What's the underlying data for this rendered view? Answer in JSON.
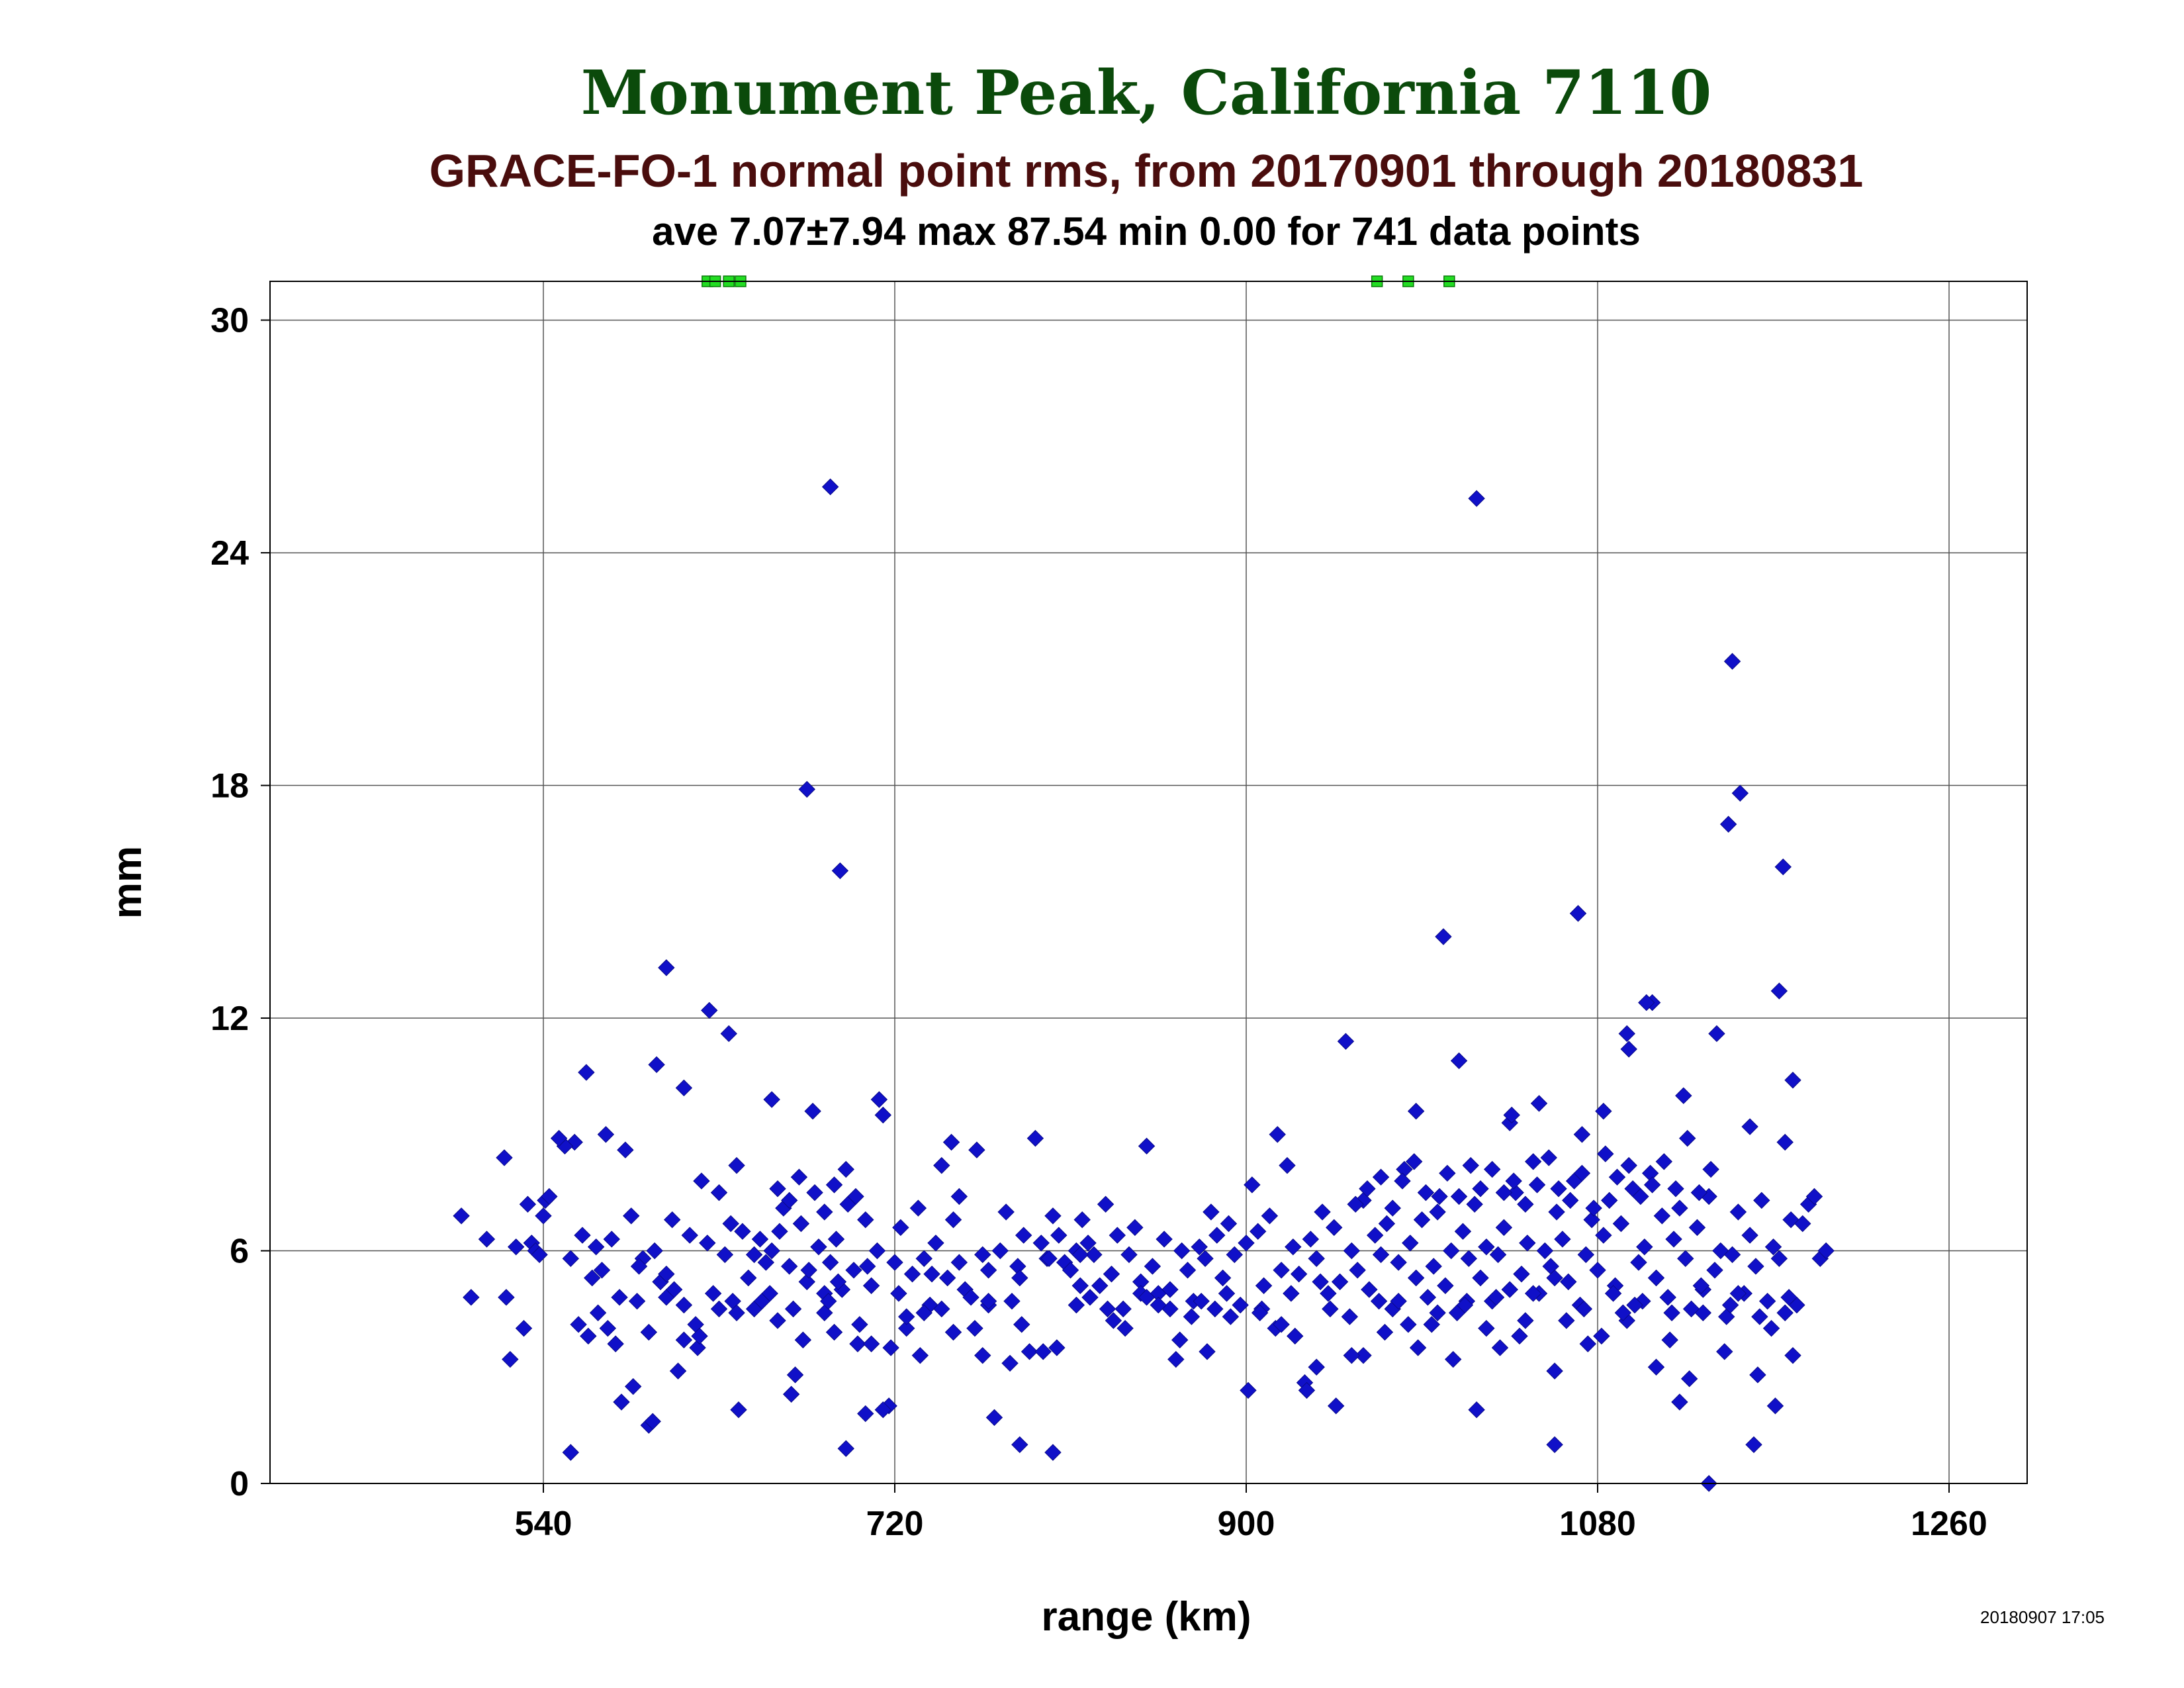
{
  "chart_data": {
    "type": "scatter",
    "title": "Monument Peak, California 7110",
    "subtitle": "GRACE-FO-1 normal point rms, from 20170901 through 20180831",
    "stats": "ave 7.07±7.94 max 87.54 min 0.00 for 741 data points",
    "xlabel": "range (km)",
    "ylabel": "mm",
    "timestamp": "20180907 17:05",
    "xlim": [
      400,
      1300
    ],
    "ylim": [
      0,
      31
    ],
    "xticks": [
      540,
      720,
      900,
      1080,
      1260
    ],
    "yticks": [
      0,
      6,
      12,
      18,
      24,
      30
    ],
    "xtick_labels": [
      "540",
      "720",
      "900",
      "1080",
      "1260"
    ],
    "ytick_labels": [
      "0",
      "6",
      "12",
      "18",
      "24",
      "30"
    ],
    "grid": true,
    "colors": {
      "points": "#1010c8",
      "offscale_markers": "#22dd22",
      "title": "#0b4a0b",
      "subtitle": "#4a0d0d"
    },
    "offscale_x": [
      624,
      628,
      635,
      641,
      967,
      983,
      1004
    ],
    "series": [
      {
        "x": [
          498,
          503,
          511,
          520,
          521,
          523,
          526,
          530,
          532,
          534,
          536,
          538,
          540,
          541,
          543,
          554,
          556,
          560,
          562,
          565,
          567,
          568,
          570,
          572,
          575,
          579,
          582,
          585,
          588,
          591,
          594,
          597,
          600,
          603,
          606,
          609,
          612,
          615,
          618,
          621,
          624,
          627,
          630,
          633,
          636,
          639,
          642,
          645,
          648,
          651,
          654,
          657,
          660,
          663,
          666,
          669,
          672,
          675,
          678,
          681,
          684,
          687,
          690,
          693,
          696,
          699,
          702,
          705,
          708,
          711,
          714,
          717,
          720,
          723,
          726,
          729,
          732,
          735,
          738,
          741,
          744,
          747,
          750,
          753,
          756,
          759,
          762,
          765,
          768,
          771,
          774,
          777,
          780,
          783,
          786,
          789,
          792,
          795,
          798,
          801,
          804,
          807,
          810,
          813,
          816,
          819,
          822,
          825,
          828,
          831,
          834,
          837,
          840,
          843,
          846,
          849,
          852,
          855,
          858,
          861,
          864,
          867,
          870,
          873,
          876,
          879,
          882,
          885,
          888,
          891,
          894,
          897,
          900,
          903,
          906,
          909,
          912,
          915,
          918,
          921,
          924,
          927,
          930,
          933,
          936,
          939,
          942,
          945,
          948,
          951,
          954,
          957,
          960,
          963,
          966,
          969,
          972,
          975,
          978,
          981,
          984,
          987,
          990,
          993,
          996,
          999,
          1002,
          1005,
          1008,
          1011,
          1014,
          1017,
          1020,
          1023,
          1026,
          1029,
          1032,
          1035,
          1038,
          1041,
          1044,
          1047,
          1050,
          1053,
          1056,
          1059,
          1062,
          1065,
          1068,
          1071,
          1074,
          1077,
          1080,
          1083,
          1086,
          1089,
          1092,
          1095,
          1098,
          1101,
          1104,
          1107,
          1110,
          1113,
          1116,
          1119,
          1122,
          1125,
          1128,
          1131,
          1134,
          1137,
          1140,
          1143,
          1146,
          1149,
          1152,
          1155,
          1158,
          1161,
          1164,
          1167,
          1170,
          1173,
          1176,
          1179,
          1182,
          1185,
          1188,
          1191,
          1194,
          1197,
          558,
          573,
          589,
          607,
          619,
          637,
          648,
          661,
          676,
          691,
          706,
          722,
          739,
          753,
          768,
          784,
          799,
          815,
          829,
          846,
          861,
          877,
          892,
          908,
          923,
          938,
          953,
          968,
          983,
          998,
          1013,
          1028,
          1043,
          1058,
          1073,
          1088,
          1103,
          1118,
          1133,
          1148,
          1163,
          1178,
          577,
          594,
          612,
          630,
          652,
          668,
          684,
          701,
          718,
          735,
          750,
          768,
          785,
          803,
          820,
          838,
          855,
          872,
          890,
          907,
          925,
          943,
          960,
          978,
          995,
          1012,
          1030,
          1047,
          1064,
          1082,
          1099,
          1117,
          1134,
          1152,
          1169,
          551,
          563,
          586,
          603,
          620,
          639,
          656,
          673,
          689,
          708,
          726,
          744,
          761,
          779,
          796,
          813,
          832,
          849,
          866,
          884,
          901,
          918,
          936,
          954,
          971,
          988,
          1006,
          1023,
          1040,
          1058,
          1075,
          1093,
          1110,
          1127,
          1145,
          1162,
          1180,
          660,
          666,
          671,
          679,
          684,
          689,
          695,
          700,
          956,
          962,
          969,
          975,
          980,
          986,
          992,
          998,
          1003,
          1009,
          1015,
          1020,
          1026,
          1032,
          1037,
          1043,
          1049,
          1055,
          1060,
          1066,
          1072,
          1078,
          1084,
          1090,
          1096,
          1102,
          1108,
          1114,
          1120,
          1126,
          1132,
          1138,
          548,
          554,
          580,
          596,
          598,
          603,
          612,
          625,
          640,
          667,
          686,
          695,
          705,
          714,
          733,
          749,
          765,
          784,
          801,
          815,
          880,
          916,
          931,
          946,
          987,
          1001,
          1018,
          1035,
          1058,
          1070,
          1083,
          1096,
          1108,
          1122,
          1137,
          1147,
          1160,
          1171,
          1180,
          635,
          657,
          675,
          687,
          692,
          712,
          1009,
          1018,
          1036,
          1050,
          1072,
          1095,
          1105,
          1124,
          1141,
          1149,
          1153,
          1158,
          1173,
          1175,
          1176
        ],
        "y": [
          6.9,
          4.8,
          6.3,
          8.4,
          4.8,
          3.2,
          6.1,
          4.0,
          7.2,
          6.2,
          6.0,
          5.9,
          6.9,
          7.3,
          7.4,
          5.8,
          8.8,
          6.4,
          10.6,
          5.3,
          6.1,
          4.4,
          5.5,
          9.0,
          6.3,
          4.8,
          8.6,
          6.9,
          4.7,
          5.8,
          1.5,
          6.0,
          5.2,
          4.8,
          6.8,
          2.9,
          10.2,
          6.4,
          4.1,
          7.8,
          6.2,
          4.9,
          7.5,
          5.9,
          6.7,
          8.2,
          6.5,
          5.3,
          4.5,
          6.3,
          5.7,
          6.0,
          4.2,
          7.1,
          5.6,
          2.8,
          6.7,
          5.2,
          9.6,
          6.1,
          4.4,
          5.7,
          6.3,
          5.0,
          7.2,
          5.5,
          4.1,
          6.8,
          5.1,
          6.0,
          9.5,
          2.0,
          5.7,
          6.6,
          4.0,
          5.4,
          7.1,
          5.8,
          4.6,
          6.2,
          8.2,
          5.3,
          6.8,
          7.4,
          5.0,
          4.8,
          8.6,
          5.9,
          5.5,
          1.7,
          6.0,
          7.0,
          4.7,
          5.6,
          6.4,
          3.4,
          8.9,
          6.2,
          5.8,
          6.9,
          6.4,
          5.7,
          5.5,
          6.0,
          6.8,
          6.2,
          5.9,
          5.1,
          7.2,
          5.4,
          6.4,
          4.5,
          5.9,
          6.6,
          5.2,
          8.7,
          5.6,
          4.9,
          6.3,
          5.0,
          3.2,
          6.0,
          5.5,
          4.7,
          6.1,
          5.8,
          7.0,
          6.4,
          5.3,
          6.7,
          5.9,
          4.6,
          6.2,
          7.7,
          6.5,
          5.1,
          6.9,
          4.0,
          5.5,
          8.2,
          6.1,
          5.4,
          2.6,
          6.3,
          5.8,
          7.0,
          4.9,
          6.6,
          5.2,
          11.4,
          6.0,
          5.5,
          7.3,
          5.0,
          6.4,
          5.9,
          6.7,
          4.5,
          5.7,
          8.1,
          6.2,
          5.3,
          6.8,
          4.8,
          5.6,
          7.4,
          5.1,
          6.0,
          4.4,
          6.5,
          5.8,
          7.2,
          5.3,
          6.1,
          4.7,
          5.9,
          6.6,
          5.0,
          7.5,
          5.4,
          6.2,
          8.3,
          4.9,
          6.0,
          5.6,
          7.0,
          6.3,
          5.2,
          7.8,
          4.6,
          5.9,
          6.8,
          5.5,
          6.4,
          7.3,
          5.1,
          6.7,
          4.2,
          7.6,
          5.7,
          6.1,
          8.0,
          5.3,
          6.9,
          4.8,
          6.3,
          7.1,
          5.8,
          4.5,
          6.6,
          5.0,
          7.4,
          5.5,
          6.0,
          4.3,
          5.9,
          7.0,
          4.9,
          6.4,
          5.6,
          7.3,
          4.7,
          6.1,
          5.8,
          4.4,
          6.8,
          4.6,
          6.7,
          7.2,
          7.4,
          5.8,
          6.0,
          4.1,
          4.0,
          5.6,
          5.0,
          3.5,
          4.7,
          5.9,
          6.5,
          5.5,
          5.2,
          5.6,
          4.9,
          5.4,
          5.7,
          4.6,
          5.3,
          5.8,
          5.1,
          4.5,
          4.9,
          4.5,
          4.7,
          4.3,
          4.5,
          4.9,
          5.2,
          4.3,
          4.7,
          4.1,
          4.4,
          4.7,
          4.8,
          4.2,
          5.3,
          4.5,
          4.9,
          4.7,
          4.4,
          5.1,
          4.6,
          4.3,
          4.8,
          3.6,
          3.9,
          4.6,
          4.5,
          4.7,
          4.5,
          4.9,
          3.6,
          3.5,
          4.4,
          3.9,
          4.7,
          4.1,
          3.5,
          4.8,
          4.0,
          4.6,
          4.3,
          4.9,
          4.4,
          3.8,
          4.5,
          3.3,
          4.7,
          4.1,
          4.6,
          3.5,
          4.9,
          4.2,
          3.8,
          4.6,
          3.7,
          4.4,
          4.9,
          4.0,
          8.7,
          3.8,
          2.5,
          5.4,
          3.8,
          4.4,
          4.9,
          3.7,
          3.9,
          3.6,
          4.3,
          4.5,
          4.0,
          3.1,
          3.4,
          4.6,
          4.2,
          4.8,
          3.7,
          4.5,
          2.4,
          4.1,
          3.0,
          3.3,
          3.9,
          3.5,
          3.2,
          4.0,
          3.8,
          2.9,
          3.6,
          4.4,
          3.0,
          2.7,
          3.4,
          2.8,
          3.3,
          7.6,
          7.3,
          7.9,
          7.5,
          7.0,
          7.7,
          8.1,
          7.4,
          7.2,
          7.6,
          7.9,
          7.1,
          7.8,
          8.3,
          7.5,
          7.0,
          8.0,
          7.4,
          8.2,
          7.6,
          8.1,
          7.5,
          7.8,
          7.2,
          7.7,
          8.4,
          7.6,
          7.3,
          8.0,
          7.1,
          8.5,
          7.9,
          8.2,
          7.4,
          7.7,
          8.3,
          7.6,
          8.9,
          7.5,
          8.1,
          8.9,
          0.8,
          2.1,
          1.6,
          10.8,
          13.3,
          3.7,
          12.2,
          1.9,
          2.3,
          4.7,
          0.9,
          1.8,
          1.9,
          3.3,
          8.8,
          3.3,
          1.0,
          0.8,
          5.9,
          3.4,
          9.0,
          2.4,
          2.0,
          9.6,
          14.1,
          1.9,
          9.3,
          1.0,
          14.7,
          9.6,
          11.2,
          12.4,
          2.1,
          0.0,
          17.0,
          1.0,
          2.0,
          10.4,
          11.6,
          9.9,
          17.9,
          25.7,
          15.8,
          9.9,
          10.9,
          25.4,
          9.5,
          9.8,
          9.0,
          11.6,
          12.4,
          10.0,
          11.6,
          21.2,
          17.8,
          9.2,
          12.7,
          15.9,
          8.8
        ]
      }
    ]
  }
}
